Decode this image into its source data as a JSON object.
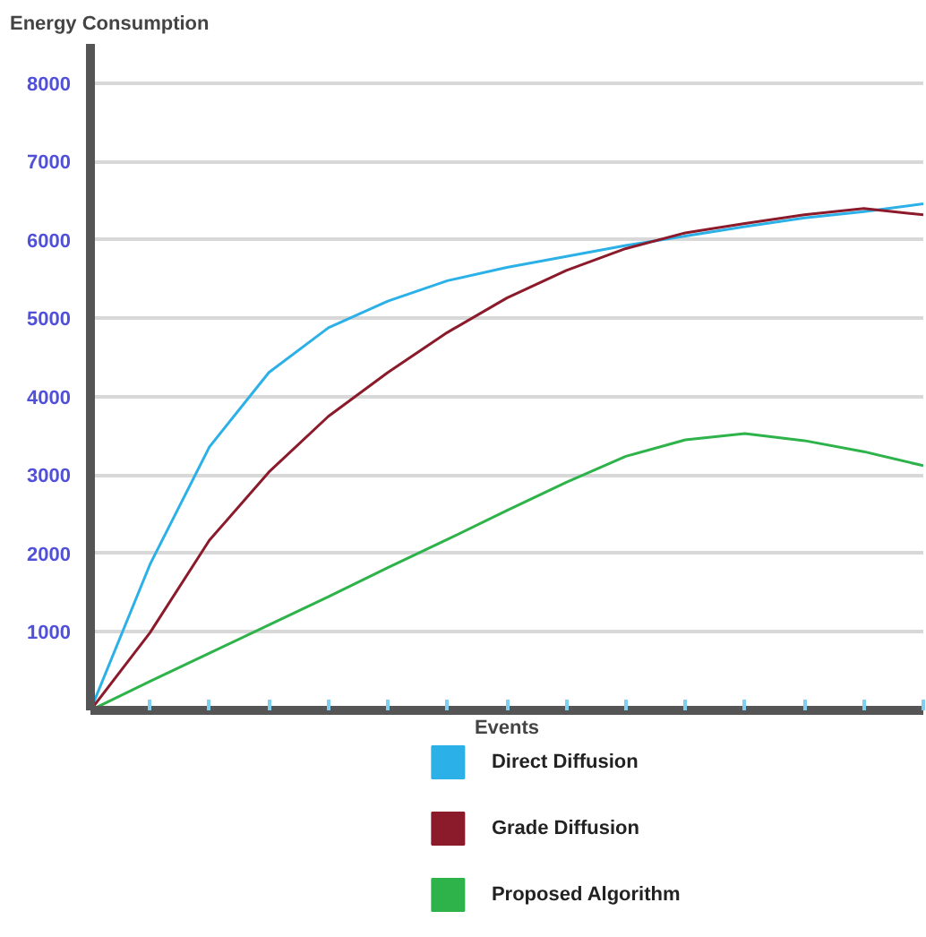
{
  "chart_data": {
    "type": "line",
    "ylabel": "Energy Consumption",
    "xlabel": "Events",
    "categories": [
      null,
      null,
      null,
      null,
      null,
      null,
      null,
      null,
      null,
      null,
      null,
      null,
      null,
      null,
      null
    ],
    "series": [
      {
        "name": "Direct Diffusion",
        "color": "#2bb0e8",
        "values": [
          0,
          1860,
          3360,
          4310,
          4880,
          5220,
          5480,
          5650,
          5790,
          5930,
          6050,
          6170,
          6280,
          6360,
          6460
        ]
      },
      {
        "name": "Grade Diffusion",
        "color": "#8b1a2a",
        "values": [
          0,
          990,
          2170,
          3040,
          3750,
          4310,
          4820,
          5260,
          5610,
          5890,
          6090,
          6210,
          6320,
          6400,
          6320
        ]
      },
      {
        "name": "Proposed Algorithm",
        "color": "#2db34a",
        "values": [
          0,
          370,
          730,
          1090,
          1450,
          1820,
          2180,
          2550,
          2910,
          3240,
          3450,
          3530,
          3440,
          3300,
          3120
        ]
      }
    ],
    "ylim": [
      0,
      8500
    ],
    "yticks": [
      1000,
      2000,
      3000,
      4000,
      5000,
      6000,
      7000,
      8000
    ],
    "grid": "y",
    "legend": "bottom",
    "marker": "none",
    "line_style": "solid"
  }
}
